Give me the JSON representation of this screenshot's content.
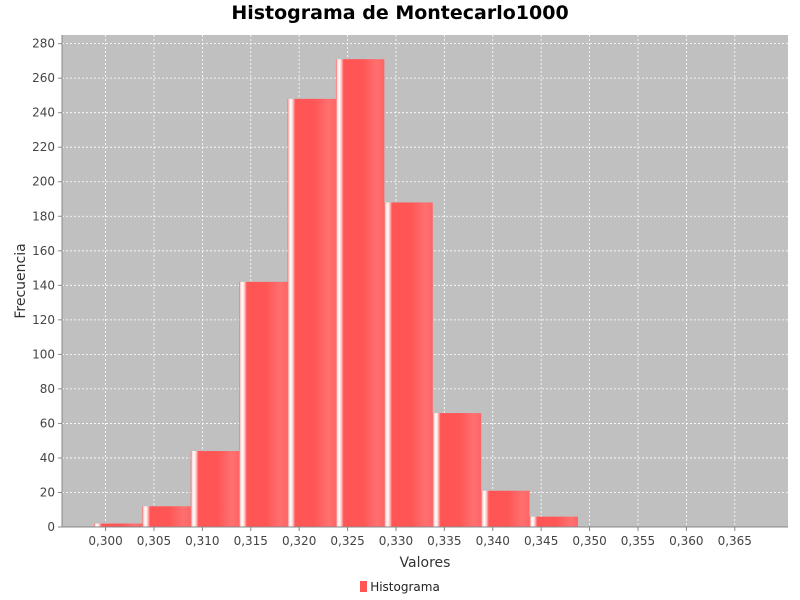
{
  "chart_data": {
    "type": "bar",
    "title": "Histograma de Montecarlo1000",
    "xlabel": "Valores",
    "ylabel": "Frecuencia",
    "xlim": [
      0.2955,
      0.3705
    ],
    "ylim": [
      0,
      285
    ],
    "xticks": [
      "0,300",
      "0,305",
      "0,310",
      "0,315",
      "0,320",
      "0,325",
      "0,330",
      "0,335",
      "0,340",
      "0,345",
      "0,350",
      "0,355",
      "0,360",
      "0,365"
    ],
    "xtick_values": [
      0.3,
      0.305,
      0.31,
      0.315,
      0.32,
      0.325,
      0.33,
      0.335,
      0.34,
      0.345,
      0.35,
      0.355,
      0.36,
      0.365
    ],
    "yticks": [
      0,
      20,
      40,
      60,
      80,
      100,
      120,
      140,
      160,
      180,
      200,
      220,
      240,
      260,
      280
    ],
    "bins": [
      {
        "x0": 0.2988,
        "x1": 0.3038,
        "value": 2
      },
      {
        "x0": 0.3038,
        "x1": 0.3088,
        "value": 12
      },
      {
        "x0": 0.3088,
        "x1": 0.3138,
        "value": 44
      },
      {
        "x0": 0.3138,
        "x1": 0.3188,
        "value": 142
      },
      {
        "x0": 0.3188,
        "x1": 0.3238,
        "value": 248
      },
      {
        "x0": 0.3238,
        "x1": 0.3288,
        "value": 271
      },
      {
        "x0": 0.3288,
        "x1": 0.3338,
        "value": 188
      },
      {
        "x0": 0.3338,
        "x1": 0.3388,
        "value": 66
      },
      {
        "x0": 0.3388,
        "x1": 0.3438,
        "value": 21
      },
      {
        "x0": 0.3438,
        "x1": 0.3488,
        "value": 6
      }
    ],
    "grid": true,
    "legend_position": "bottom",
    "series": [
      {
        "name": "Histograma",
        "color": "#ff5555"
      }
    ]
  }
}
